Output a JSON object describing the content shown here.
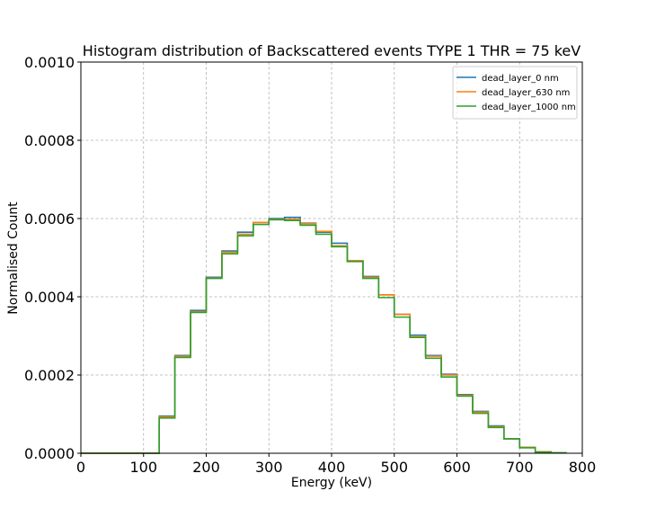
{
  "chart_data": {
    "type": "line",
    "drawstyle": "steps",
    "title": "Histogram distribution of Backscattered events TYPE 1 THR = 75 keV",
    "xlabel": "Energy (keV)",
    "ylabel": "Normalised Count",
    "xlim": [
      0,
      800
    ],
    "ylim": [
      0,
      0.001
    ],
    "xticks": [
      "0",
      "100",
      "200",
      "300",
      "400",
      "500",
      "600",
      "700",
      "800"
    ],
    "yticks": [
      "0.0000",
      "0.0002",
      "0.0004",
      "0.0006",
      "0.0008",
      "0.0010"
    ],
    "grid": true,
    "legend_position": "top-right",
    "bin_edges": [
      0,
      25,
      50,
      75,
      100,
      125,
      150,
      175,
      200,
      225,
      250,
      275,
      300,
      325,
      350,
      375,
      400,
      425,
      450,
      475,
      500,
      525,
      550,
      575,
      600,
      625,
      650,
      675,
      700,
      725,
      750,
      775
    ],
    "series": [
      {
        "name": "dead_layer_0 nm",
        "color": "#1f77b4",
        "values": [
          0,
          0,
          0,
          0,
          0,
          9.5e-05,
          0.00025,
          0.000365,
          0.00045,
          0.000517,
          0.000565,
          0.00059,
          0.0006,
          0.000603,
          0.000588,
          0.000565,
          0.000537,
          0.000492,
          0.000452,
          0.000405,
          0.000355,
          0.000302,
          0.00025,
          0.000202,
          0.00015,
          0.000107,
          7e-05,
          3.7e-05,
          1.5e-05,
          4e-06,
          1e-06
        ]
      },
      {
        "name": "dead_layer_630 nm",
        "color": "#ff7f0e",
        "values": [
          0,
          0,
          0,
          0,
          0,
          9.3e-05,
          0.000248,
          0.000362,
          0.000448,
          0.000514,
          0.00056,
          0.00059,
          0.000598,
          0.000598,
          0.000587,
          0.000567,
          0.00053,
          0.000492,
          0.00045,
          0.000405,
          0.000355,
          0.000298,
          0.000248,
          0.0002,
          0.000148,
          0.000105,
          6.8e-05,
          3.7e-05,
          1.5e-05,
          4e-06,
          1e-06
        ]
      },
      {
        "name": "dead_layer_1000 nm",
        "color": "#2ca02c",
        "values": [
          0,
          0,
          0,
          0,
          0,
          9e-05,
          0.000245,
          0.00036,
          0.000447,
          0.00051,
          0.000556,
          0.000585,
          0.000597,
          0.000595,
          0.000583,
          0.00056,
          0.000528,
          0.00049,
          0.000447,
          0.000398,
          0.000348,
          0.000296,
          0.000243,
          0.000195,
          0.000146,
          0.000102,
          6.6e-05,
          3.7e-05,
          1.4e-05,
          3e-06,
          1e-06
        ]
      }
    ]
  }
}
